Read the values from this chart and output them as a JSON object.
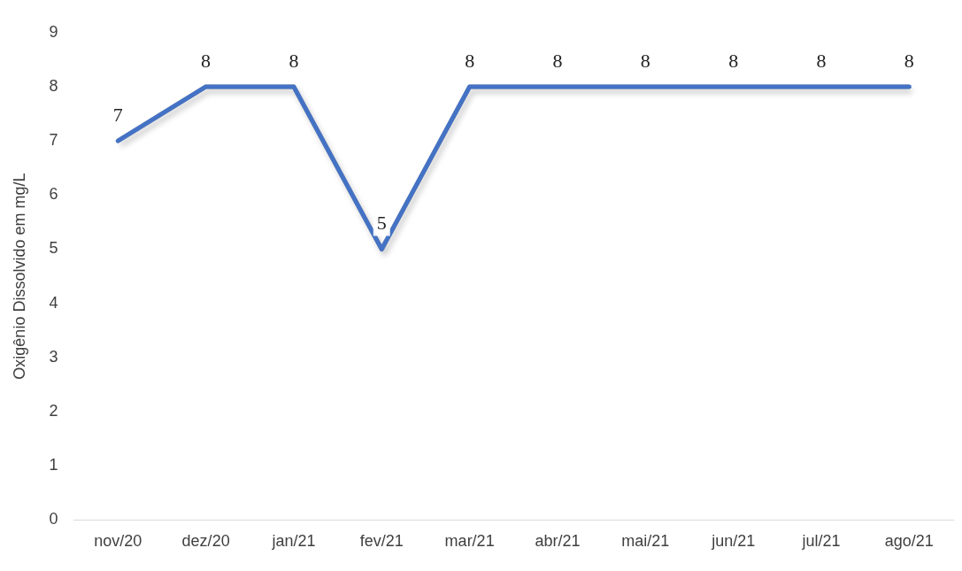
{
  "chart_data": {
    "type": "line",
    "ylabel": "Oxigênio Dissolvido em mg/L",
    "categories": [
      "nov/20",
      "dez/20",
      "jan/21",
      "fev/21",
      "mar/21",
      "abr/21",
      "mai/21",
      "jun/21",
      "jul/21",
      "ago/21"
    ],
    "series": [
      {
        "color": "#4472c4",
        "values": [
          7,
          8,
          8,
          5,
          8,
          8,
          8,
          8,
          8,
          8
        ]
      }
    ],
    "ylim": [
      0,
      9
    ],
    "yticks": [
      0,
      1,
      2,
      3,
      4,
      5,
      6,
      7,
      8,
      9
    ],
    "grid": false,
    "legend": false,
    "marker": "none",
    "line_style": "solid",
    "data_labels": true
  }
}
